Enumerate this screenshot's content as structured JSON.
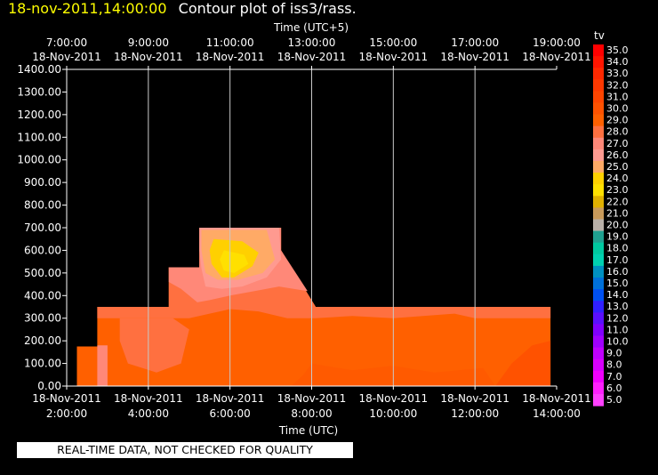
{
  "header": {
    "timestamp": "18-nov-2011,14:00:00",
    "title": "Contour plot of iss3/rass."
  },
  "quality_note": "REAL-TIME DATA, NOT CHECKED FOR QUALITY",
  "chart_data": {
    "type": "heatmap",
    "title": "Contour plot of iss3/rass.",
    "top_axis": {
      "label": "Time (UTC+5)",
      "ticks": [
        {
          "time": "7:00:00",
          "date": "18-Nov-2011"
        },
        {
          "time": "9:00:00",
          "date": "18-Nov-2011"
        },
        {
          "time": "11:00:00",
          "date": "18-Nov-2011"
        },
        {
          "time": "13:00:00",
          "date": "18-Nov-2011"
        },
        {
          "time": "15:00:00",
          "date": "18-Nov-2011"
        },
        {
          "time": "17:00:00",
          "date": "18-Nov-2011"
        },
        {
          "time": "19:00:00",
          "date": "18-Nov-2011"
        }
      ]
    },
    "bottom_axis": {
      "label": "Time (UTC)",
      "ticks": [
        {
          "date": "18-Nov-2011",
          "time": "2:00:00"
        },
        {
          "date": "18-Nov-2011",
          "time": "4:00:00"
        },
        {
          "date": "18-Nov-2011",
          "time": "6:00:00"
        },
        {
          "date": "18-Nov-2011",
          "time": "8:00:00"
        },
        {
          "date": "18-Nov-2011",
          "time": "10:00:00"
        },
        {
          "date": "18-Nov-2011",
          "time": "12:00:00"
        },
        {
          "date": "18-Nov-2011",
          "time": "14:00:00"
        }
      ],
      "range_utc_hours": [
        2,
        14
      ]
    },
    "y_axis": {
      "ticks": [
        "0.00",
        "100.00",
        "200.00",
        "300.00",
        "400.00",
        "500.00",
        "600.00",
        "700.00",
        "800.00",
        "900.00",
        "1000.00",
        "1100.00",
        "1200.00",
        "1300.00",
        "1400.00"
      ],
      "range": [
        0,
        1400
      ]
    },
    "grid": "vertical",
    "colorbar": {
      "label": "tv",
      "placement": "right",
      "range": [
        5,
        35
      ],
      "levels": [
        "35.0",
        "34.0",
        "33.0",
        "32.0",
        "31.0",
        "30.0",
        "29.0",
        "28.0",
        "27.0",
        "26.0",
        "25.0",
        "24.0",
        "23.0",
        "22.0",
        "21.0",
        "20.0",
        "19.0",
        "18.0",
        "17.0",
        "16.0",
        "15.0",
        "14.0",
        "13.0",
        "12.0",
        "11.0",
        "10.0",
        "9.0",
        "8.0",
        "7.0",
        "6.0",
        "5.0"
      ],
      "colors": [
        "#ff0000",
        "#ff1500",
        "#ff2800",
        "#ff3800",
        "#ff4500",
        "#ff5200",
        "#ff6000",
        "#ff7040",
        "#ff8878",
        "#ff9a90",
        "#ffaa66",
        "#ffd000",
        "#ffe000",
        "#e0b000",
        "#c89a5a",
        "#b8b0a8",
        "#20a090",
        "#00c8a0",
        "#00d0b0",
        "#0090c0",
        "#0070d8",
        "#0050f0",
        "#3020ff",
        "#5a10ff",
        "#8000ff",
        "#a000ff",
        "#c000ff",
        "#d800ff",
        "#f000ff",
        "#ff20ff",
        "#ff40ff"
      ]
    },
    "regions": [
      {
        "tv": 29,
        "x_start": 2.25,
        "x_end": 13.85,
        "y_max_profile": [
          [
            2.25,
            175
          ],
          [
            2.75,
            175
          ],
          [
            2.75,
            350
          ],
          [
            4.5,
            350
          ],
          [
            4.5,
            525
          ],
          [
            5.25,
            525
          ],
          [
            5.25,
            700
          ],
          [
            7.25,
            700
          ],
          [
            7.25,
            600
          ],
          [
            8.1,
            350
          ],
          [
            13.85,
            350
          ]
        ]
      },
      {
        "tv": 28,
        "description": "upper boundary layer band"
      },
      {
        "tv": 27,
        "description": "pink region around 350-700"
      },
      {
        "tv": 25,
        "description": "orange band around core"
      },
      {
        "tv": 24,
        "center": [
          6.1,
          540
        ]
      },
      {
        "tv": 30,
        "description": "lower right, 12.5-13.85 near ground"
      }
    ]
  }
}
